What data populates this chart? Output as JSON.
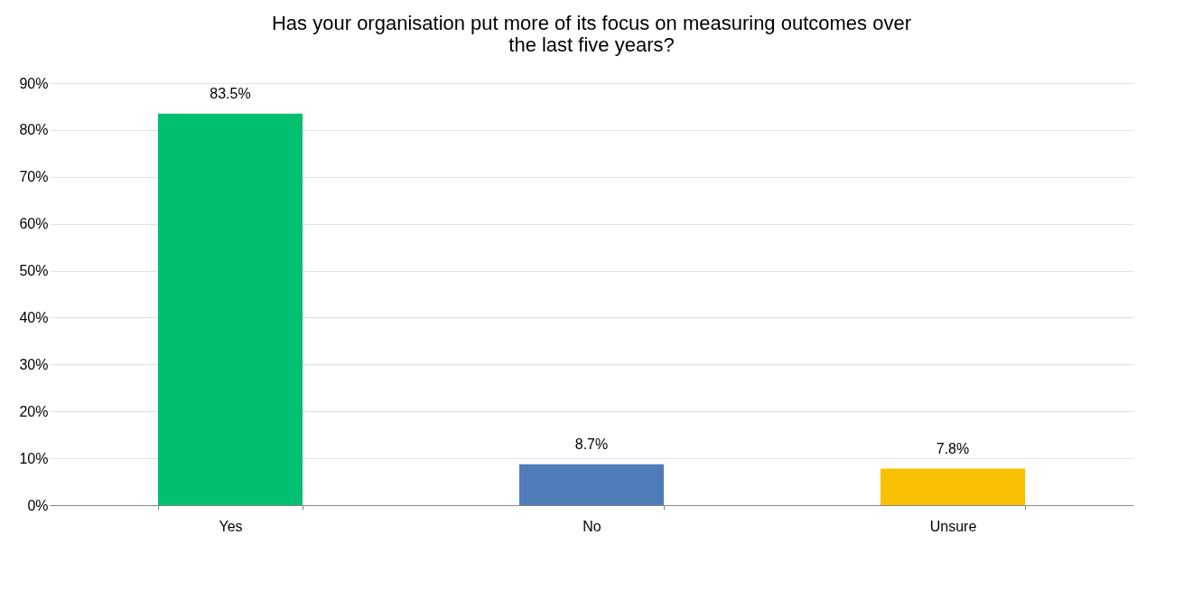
{
  "chart_data": {
    "type": "bar",
    "title": "Has your organisation put more of its focus on measuring outcomes over the last five years?",
    "categories": [
      "Yes",
      "No",
      "Unsure"
    ],
    "values": [
      83.5,
      8.7,
      7.8
    ],
    "colors": [
      "#00bf6f",
      "#4f7dba",
      "#f8c000"
    ],
    "value_labels": [
      "83.5%",
      "8.7%",
      "7.8%"
    ],
    "ylim": [
      0,
      90
    ],
    "yticks": [
      {
        "value": 0,
        "label": "0%"
      },
      {
        "value": 10,
        "label": "10%"
      },
      {
        "value": 20,
        "label": "20%"
      },
      {
        "value": 30,
        "label": "30%"
      },
      {
        "value": 40,
        "label": "40%"
      },
      {
        "value": 50,
        "label": "50%"
      },
      {
        "value": 60,
        "label": "60%"
      },
      {
        "value": 70,
        "label": "70%"
      },
      {
        "value": 80,
        "label": "80%"
      },
      {
        "value": 90,
        "label": "90%"
      }
    ],
    "grid": "y",
    "legend": false
  }
}
